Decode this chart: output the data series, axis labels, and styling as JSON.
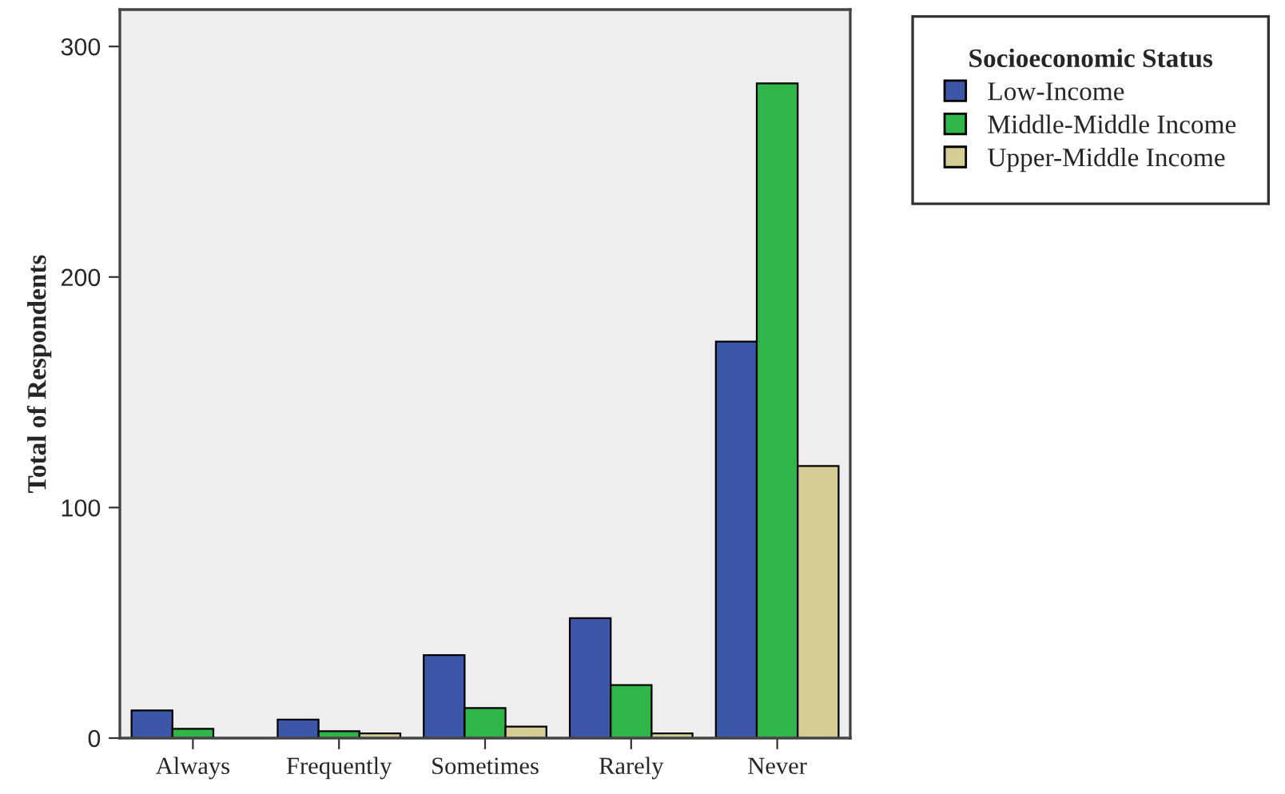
{
  "chart_data": {
    "type": "bar",
    "ylabel": "Total of Respondents",
    "legend_title": "Socioeconomic Status",
    "categories": [
      "Always",
      "Frequently",
      "Sometimes",
      "Rarely",
      "Never"
    ],
    "series": [
      {
        "name": "Low-Income",
        "color": "#3c56a8",
        "values": [
          12,
          8,
          36,
          52,
          172
        ]
      },
      {
        "name": "Middle-Middle Income",
        "color": "#2fb548",
        "values": [
          4,
          3,
          13,
          23,
          284
        ]
      },
      {
        "name": "Upper-Middle Income",
        "color": "#d6cd96",
        "values": [
          0,
          2,
          5,
          2,
          118
        ]
      }
    ],
    "ylim": [
      0,
      316
    ],
    "yticks": [
      0,
      100,
      200,
      300
    ],
    "grid": false,
    "legend": "top right"
  }
}
